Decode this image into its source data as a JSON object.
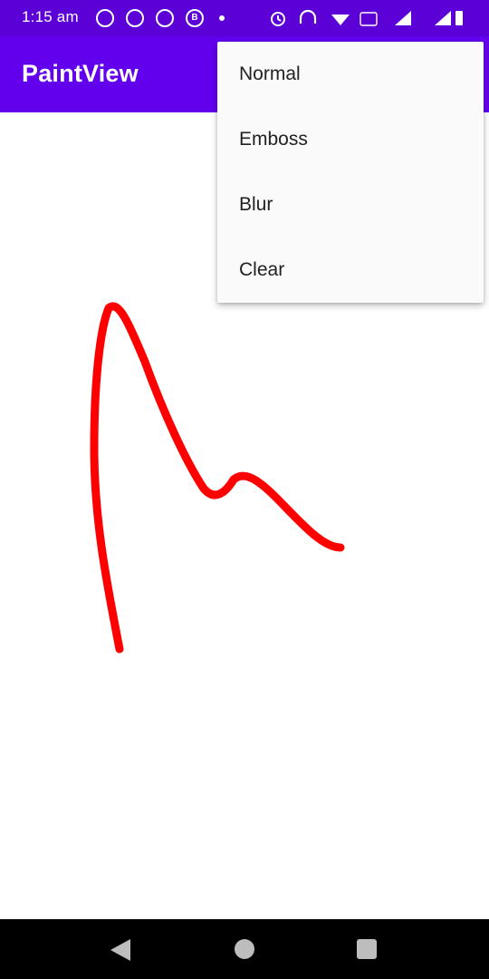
{
  "status_bar": {
    "time": "1:15 am",
    "icons": [
      "whatsapp-icon",
      "whatsapp-icon",
      "whatsapp-icon",
      "whatsapp-business-icon",
      "notification-dot-icon",
      "alarm-icon",
      "headset-icon",
      "wifi-icon",
      "volte-icon",
      "signal-icon",
      "signal-icon",
      "battery-icon"
    ],
    "business_badge": "B"
  },
  "app_bar": {
    "title": "PaintView",
    "color": "#6200ee"
  },
  "menu": {
    "items": [
      {
        "label": "Normal"
      },
      {
        "label": "Emboss"
      },
      {
        "label": "Blur"
      },
      {
        "label": "Clear"
      }
    ]
  },
  "canvas": {
    "stroke_color": "#ff0000"
  },
  "nav_bar": {
    "buttons": [
      "back-icon",
      "home-icon",
      "recents-icon"
    ]
  }
}
